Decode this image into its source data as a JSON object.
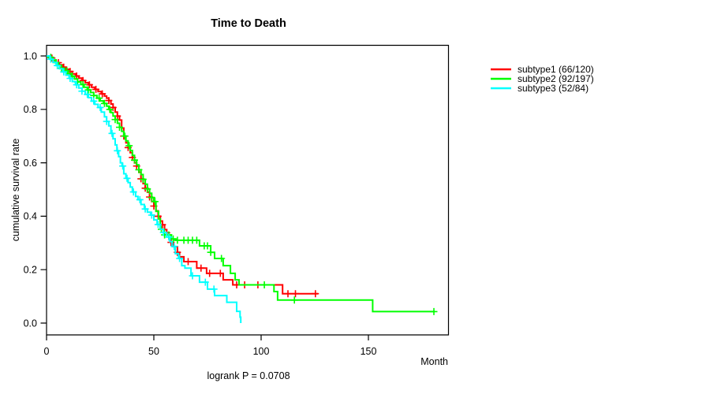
{
  "title": "Time to Death",
  "footer": {
    "logrank_label": "logrank P = 0.0708"
  },
  "axes": {
    "x": {
      "label": "Month",
      "ticks": [
        "0",
        "50",
        "100",
        "150"
      ]
    },
    "y": {
      "label": "cumulative survival rate",
      "ticks": [
        "0.0",
        "0.2",
        "0.4",
        "0.6",
        "0.8",
        "1.0"
      ]
    }
  },
  "legend": {
    "items": [
      {
        "label": "subtype1 (66/120)",
        "color": "#ff0000"
      },
      {
        "label": "subtype2 (92/197)",
        "color": "#00ff00"
      },
      {
        "label": "subtype3 (52/84)",
        "color": "#00ffff"
      }
    ]
  },
  "chart_data": {
    "type": "line",
    "chart_kind": "kaplan-meier-step",
    "title": "Time to Death",
    "xlabel": "Month",
    "ylabel": "cumulative survival rate",
    "xlim": [
      0,
      187
    ],
    "ylim": [
      0,
      1
    ],
    "x_ticks": [
      0,
      50,
      100,
      150
    ],
    "y_ticks": [
      0.0,
      0.2,
      0.4,
      0.6,
      0.8,
      1.0
    ],
    "annotation": "logrank P = 0.0708",
    "legend_position": "top-right-outside",
    "grid": false,
    "series": [
      {
        "id": "subtype1",
        "name": "subtype1 (66/120)",
        "color": "#ff0000",
        "steps": [
          [
            0,
            1.0
          ],
          [
            1.5,
            0.992
          ],
          [
            3,
            0.983
          ],
          [
            4.5,
            0.975
          ],
          [
            6,
            0.967
          ],
          [
            7.5,
            0.958
          ],
          [
            9,
            0.95
          ],
          [
            10.5,
            0.942
          ],
          [
            12,
            0.933
          ],
          [
            13.5,
            0.925
          ],
          [
            15,
            0.917
          ],
          [
            16.5,
            0.908
          ],
          [
            18,
            0.9
          ],
          [
            19.5,
            0.892
          ],
          [
            21,
            0.883
          ],
          [
            22.5,
            0.875
          ],
          [
            24,
            0.867
          ],
          [
            25.5,
            0.858
          ],
          [
            27,
            0.85
          ],
          [
            28,
            0.842
          ],
          [
            29,
            0.833
          ],
          [
            30,
            0.82
          ],
          [
            31,
            0.807
          ],
          [
            32,
            0.79
          ],
          [
            33,
            0.775
          ],
          [
            34,
            0.76
          ],
          [
            35,
            0.73
          ],
          [
            36,
            0.7
          ],
          [
            37,
            0.675
          ],
          [
            38,
            0.657
          ],
          [
            39,
            0.638
          ],
          [
            40,
            0.62
          ],
          [
            41,
            0.6
          ],
          [
            42,
            0.588
          ],
          [
            43,
            0.565
          ],
          [
            44,
            0.54
          ],
          [
            45,
            0.522
          ],
          [
            46,
            0.505
          ],
          [
            47,
            0.49
          ],
          [
            48,
            0.472
          ],
          [
            49,
            0.455
          ],
          [
            50,
            0.438
          ],
          [
            51,
            0.42
          ],
          [
            52,
            0.4
          ],
          [
            53,
            0.382
          ],
          [
            54,
            0.368
          ],
          [
            55,
            0.35
          ],
          [
            56,
            0.338
          ],
          [
            57,
            0.318
          ],
          [
            58,
            0.302
          ],
          [
            59,
            0.286
          ],
          [
            61,
            0.265
          ],
          [
            62,
            0.248
          ],
          [
            64,
            0.23
          ],
          [
            70,
            0.206
          ],
          [
            74.6,
            0.186
          ],
          [
            82.3,
            0.162
          ],
          [
            86.8,
            0.143
          ],
          [
            110,
            0.11
          ],
          [
            126.5,
            0.11
          ]
        ],
        "censor_months": [
          2.5,
          5.5,
          8,
          11,
          14,
          17,
          20,
          23,
          26,
          29,
          31,
          33,
          36,
          38,
          40,
          42,
          44,
          46,
          48,
          50,
          52,
          54,
          56,
          58,
          61,
          66,
          72,
          76,
          81,
          88.6,
          92.3,
          98.5,
          112.5,
          116,
          125.3
        ]
      },
      {
        "id": "subtype2",
        "name": "subtype2 (92/197)",
        "color": "#00ff00",
        "steps": [
          [
            0,
            1.0
          ],
          [
            1,
            0.995
          ],
          [
            2.5,
            0.985
          ],
          [
            4,
            0.975
          ],
          [
            5.5,
            0.965
          ],
          [
            7,
            0.954
          ],
          [
            8.5,
            0.944
          ],
          [
            10,
            0.934
          ],
          [
            11.5,
            0.924
          ],
          [
            13,
            0.914
          ],
          [
            14.5,
            0.903
          ],
          [
            16,
            0.893
          ],
          [
            17.5,
            0.883
          ],
          [
            19,
            0.873
          ],
          [
            20.5,
            0.863
          ],
          [
            22,
            0.852
          ],
          [
            23.5,
            0.842
          ],
          [
            25,
            0.832
          ],
          [
            26.5,
            0.822
          ],
          [
            28,
            0.812
          ],
          [
            29,
            0.8
          ],
          [
            30,
            0.788
          ],
          [
            31,
            0.775
          ],
          [
            32,
            0.762
          ],
          [
            33,
            0.748
          ],
          [
            34,
            0.733
          ],
          [
            35,
            0.718
          ],
          [
            36,
            0.7
          ],
          [
            37,
            0.682
          ],
          [
            38,
            0.664
          ],
          [
            39,
            0.646
          ],
          [
            40,
            0.628
          ],
          [
            41,
            0.61
          ],
          [
            42,
            0.592
          ],
          [
            43,
            0.574
          ],
          [
            44,
            0.556
          ],
          [
            45,
            0.538
          ],
          [
            46,
            0.52
          ],
          [
            47,
            0.502
          ],
          [
            48,
            0.486
          ],
          [
            49,
            0.47
          ],
          [
            50,
            0.455
          ],
          [
            51,
            0.418
          ],
          [
            52.2,
            0.39
          ],
          [
            53,
            0.351
          ],
          [
            54.8,
            0.33
          ],
          [
            58.1,
            0.315
          ],
          [
            60,
            0.31
          ],
          [
            71.3,
            0.289
          ],
          [
            76.5,
            0.265
          ],
          [
            78.3,
            0.242
          ],
          [
            82.3,
            0.215
          ],
          [
            85.7,
            0.186
          ],
          [
            87.9,
            0.162
          ],
          [
            89.7,
            0.143
          ],
          [
            106,
            0.118
          ],
          [
            107.7,
            0.086
          ],
          [
            152,
            0.043
          ],
          [
            181,
            0.043
          ]
        ],
        "censor_months": [
          2,
          4.5,
          7,
          9.5,
          12,
          14.5,
          17,
          19.5,
          22,
          24.5,
          27,
          29.5,
          32,
          34,
          36.5,
          38.5,
          41,
          43,
          45,
          47,
          49,
          50.5,
          53.5,
          55,
          57,
          59,
          61,
          64,
          66,
          68,
          70,
          73.5,
          75,
          76.5,
          81.5,
          101.5,
          115.5,
          180.5
        ]
      },
      {
        "id": "subtype3",
        "name": "subtype3 (52/84)",
        "color": "#00ffff",
        "steps": [
          [
            0,
            1.0
          ],
          [
            1.5,
            0.988
          ],
          [
            3,
            0.976
          ],
          [
            4.5,
            0.964
          ],
          [
            6,
            0.952
          ],
          [
            7.5,
            0.94
          ],
          [
            9,
            0.928
          ],
          [
            10.5,
            0.916
          ],
          [
            12,
            0.904
          ],
          [
            13.5,
            0.892
          ],
          [
            15,
            0.88
          ],
          [
            16.5,
            0.868
          ],
          [
            18,
            0.856
          ],
          [
            19.5,
            0.844
          ],
          [
            21,
            0.831
          ],
          [
            22.5,
            0.819
          ],
          [
            24,
            0.807
          ],
          [
            25.5,
            0.79
          ],
          [
            27,
            0.772
          ],
          [
            28,
            0.755
          ],
          [
            29,
            0.738
          ],
          [
            30,
            0.71
          ],
          [
            31,
            0.69
          ],
          [
            32,
            0.667
          ],
          [
            32.8,
            0.645
          ],
          [
            33.6,
            0.623
          ],
          [
            34.4,
            0.6
          ],
          [
            35.2,
            0.588
          ],
          [
            36,
            0.559
          ],
          [
            37,
            0.542
          ],
          [
            38,
            0.526
          ],
          [
            39,
            0.509
          ],
          [
            40,
            0.491
          ],
          [
            41.5,
            0.474
          ],
          [
            42.6,
            0.462
          ],
          [
            44,
            0.444
          ],
          [
            45.6,
            0.427
          ],
          [
            47,
            0.415
          ],
          [
            48.5,
            0.404
          ],
          [
            50,
            0.386
          ],
          [
            51.5,
            0.369
          ],
          [
            53,
            0.351
          ],
          [
            54.5,
            0.339
          ],
          [
            56,
            0.322
          ],
          [
            57.5,
            0.305
          ],
          [
            58.5,
            0.287
          ],
          [
            60,
            0.26
          ],
          [
            61.5,
            0.242
          ],
          [
            63,
            0.215
          ],
          [
            64.5,
            0.206
          ],
          [
            67.3,
            0.177
          ],
          [
            71.3,
            0.153
          ],
          [
            75,
            0.127
          ],
          [
            78.3,
            0.103
          ],
          [
            84,
            0.078
          ],
          [
            88.6,
            0.044
          ],
          [
            90.2,
            0.022
          ],
          [
            90.5,
            0.0
          ]
        ],
        "censor_months": [
          2,
          5,
          8,
          11,
          14,
          16.5,
          19,
          22,
          25,
          28,
          30.5,
          33,
          35.5,
          37.5,
          40.5,
          43.5,
          46,
          49,
          52,
          54.5,
          57,
          59.5,
          62,
          68,
          74,
          78
        ]
      }
    ]
  }
}
